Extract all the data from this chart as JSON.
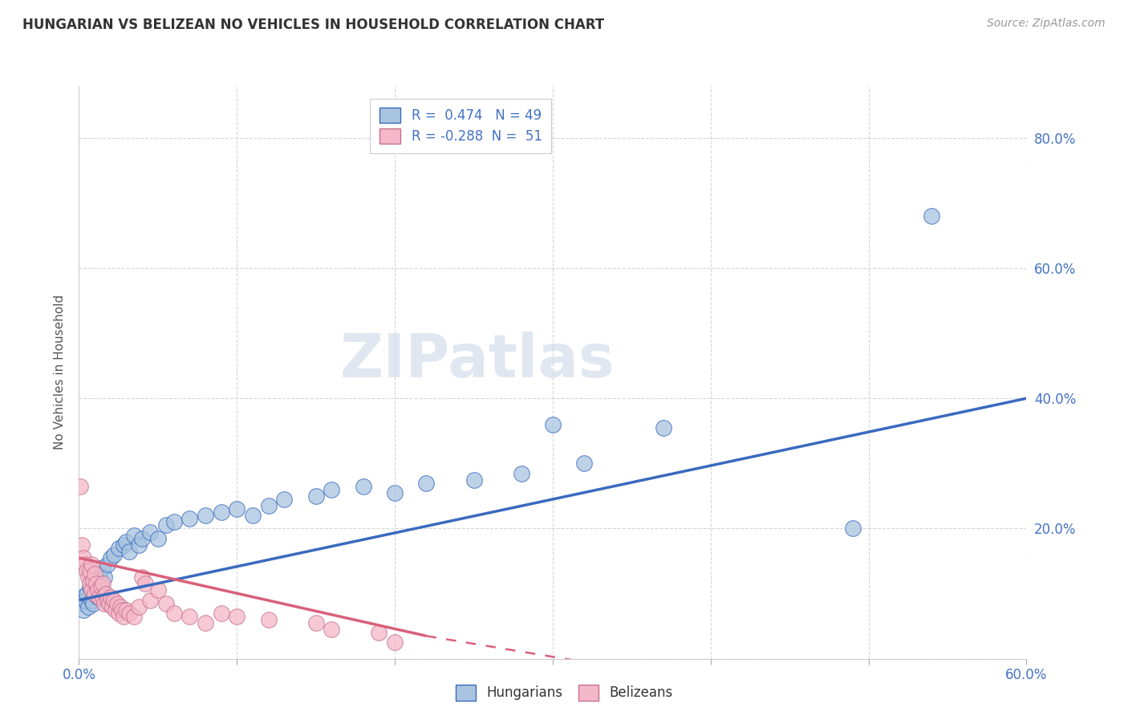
{
  "title": "HUNGARIAN VS BELIZEAN NO VEHICLES IN HOUSEHOLD CORRELATION CHART",
  "source_text": "Source: ZipAtlas.com",
  "ylabel": "No Vehicles in Household",
  "xlim": [
    0.0,
    0.6
  ],
  "ylim": [
    0.0,
    0.88
  ],
  "xticks": [
    0.0,
    0.1,
    0.2,
    0.3,
    0.4,
    0.5,
    0.6
  ],
  "xticklabels": [
    "0.0%",
    "",
    "",
    "",
    "",
    "",
    "60.0%"
  ],
  "yticks": [
    0.0,
    0.2,
    0.4,
    0.6,
    0.8
  ],
  "yticklabels": [
    "",
    "20.0%",
    "40.0%",
    "60.0%",
    "80.0%"
  ],
  "hungarian_R": 0.474,
  "hungarian_N": 49,
  "belizean_R": -0.288,
  "belizean_N": 51,
  "hungarian_color": "#a8c4e0",
  "belizean_color": "#f4b8c8",
  "hungarian_line_color": "#3a6abf",
  "belizean_line_color": "#d9607a",
  "watermark": "ZIPatlas",
  "hungarian_trend": [
    0.0,
    0.6,
    0.09,
    0.4
  ],
  "belizean_trend_solid": [
    0.0,
    0.22,
    0.155,
    0.035
  ],
  "belizean_trend_dash": [
    0.22,
    0.42,
    0.035,
    -0.045
  ],
  "hungarian_points": [
    [
      0.001,
      0.085
    ],
    [
      0.002,
      0.095
    ],
    [
      0.003,
      0.075
    ],
    [
      0.004,
      0.09
    ],
    [
      0.005,
      0.1
    ],
    [
      0.006,
      0.08
    ],
    [
      0.007,
      0.11
    ],
    [
      0.008,
      0.09
    ],
    [
      0.009,
      0.085
    ],
    [
      0.01,
      0.1
    ],
    [
      0.011,
      0.12
    ],
    [
      0.012,
      0.095
    ],
    [
      0.013,
      0.13
    ],
    [
      0.014,
      0.11
    ],
    [
      0.015,
      0.14
    ],
    [
      0.016,
      0.125
    ],
    [
      0.018,
      0.145
    ],
    [
      0.02,
      0.155
    ],
    [
      0.022,
      0.16
    ],
    [
      0.025,
      0.17
    ],
    [
      0.028,
      0.175
    ],
    [
      0.03,
      0.18
    ],
    [
      0.032,
      0.165
    ],
    [
      0.035,
      0.19
    ],
    [
      0.038,
      0.175
    ],
    [
      0.04,
      0.185
    ],
    [
      0.045,
      0.195
    ],
    [
      0.05,
      0.185
    ],
    [
      0.055,
      0.205
    ],
    [
      0.06,
      0.21
    ],
    [
      0.07,
      0.215
    ],
    [
      0.08,
      0.22
    ],
    [
      0.09,
      0.225
    ],
    [
      0.1,
      0.23
    ],
    [
      0.11,
      0.22
    ],
    [
      0.12,
      0.235
    ],
    [
      0.13,
      0.245
    ],
    [
      0.15,
      0.25
    ],
    [
      0.16,
      0.26
    ],
    [
      0.18,
      0.265
    ],
    [
      0.2,
      0.255
    ],
    [
      0.22,
      0.27
    ],
    [
      0.25,
      0.275
    ],
    [
      0.28,
      0.285
    ],
    [
      0.3,
      0.36
    ],
    [
      0.32,
      0.3
    ],
    [
      0.37,
      0.355
    ],
    [
      0.49,
      0.2
    ],
    [
      0.54,
      0.68
    ]
  ],
  "belizean_points": [
    [
      0.001,
      0.265
    ],
    [
      0.002,
      0.175
    ],
    [
      0.003,
      0.155
    ],
    [
      0.004,
      0.145
    ],
    [
      0.005,
      0.135
    ],
    [
      0.006,
      0.125
    ],
    [
      0.007,
      0.115
    ],
    [
      0.007,
      0.135
    ],
    [
      0.008,
      0.105
    ],
    [
      0.008,
      0.145
    ],
    [
      0.009,
      0.12
    ],
    [
      0.01,
      0.13
    ],
    [
      0.01,
      0.1
    ],
    [
      0.011,
      0.115
    ],
    [
      0.012,
      0.105
    ],
    [
      0.013,
      0.095
    ],
    [
      0.014,
      0.11
    ],
    [
      0.015,
      0.115
    ],
    [
      0.015,
      0.095
    ],
    [
      0.016,
      0.085
    ],
    [
      0.017,
      0.1
    ],
    [
      0.018,
      0.09
    ],
    [
      0.019,
      0.085
    ],
    [
      0.02,
      0.095
    ],
    [
      0.021,
      0.08
    ],
    [
      0.022,
      0.09
    ],
    [
      0.023,
      0.075
    ],
    [
      0.024,
      0.085
    ],
    [
      0.025,
      0.07
    ],
    [
      0.026,
      0.08
    ],
    [
      0.027,
      0.075
    ],
    [
      0.028,
      0.065
    ],
    [
      0.03,
      0.075
    ],
    [
      0.032,
      0.07
    ],
    [
      0.035,
      0.065
    ],
    [
      0.038,
      0.08
    ],
    [
      0.04,
      0.125
    ],
    [
      0.042,
      0.115
    ],
    [
      0.045,
      0.09
    ],
    [
      0.05,
      0.105
    ],
    [
      0.055,
      0.085
    ],
    [
      0.06,
      0.07
    ],
    [
      0.07,
      0.065
    ],
    [
      0.08,
      0.055
    ],
    [
      0.09,
      0.07
    ],
    [
      0.1,
      0.065
    ],
    [
      0.12,
      0.06
    ],
    [
      0.15,
      0.055
    ],
    [
      0.16,
      0.045
    ],
    [
      0.19,
      0.04
    ],
    [
      0.2,
      0.025
    ]
  ]
}
